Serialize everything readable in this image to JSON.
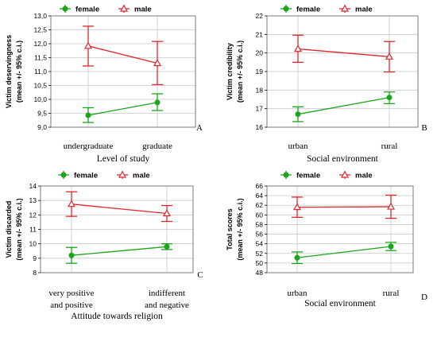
{
  "colors": {
    "female": "#1aa51a",
    "male": "#e0262c",
    "grid": "#c8c8c8",
    "frame": "#7a7a7a"
  },
  "chart_data": [
    {
      "type": "line",
      "panel_label": "A",
      "ylabel": [
        "Victim deservingness",
        "(mean +/- 95% c.i.)"
      ],
      "xlabel": "Level of study",
      "categories": [
        [
          "undergraduate"
        ],
        [
          "graduate"
        ]
      ],
      "ylim": [
        9.0,
        13.0
      ],
      "yticks": [
        9.0,
        9.5,
        10.0,
        10.5,
        11.0,
        11.5,
        12.0,
        12.5,
        13.0
      ],
      "tick_decimals": 1,
      "grid": true,
      "legend_position": "top",
      "series": [
        {
          "name": "female",
          "marker": "circle",
          "values": [
            9.43,
            9.89
          ],
          "lower": [
            9.17,
            9.6
          ],
          "upper": [
            9.7,
            10.2
          ]
        },
        {
          "name": "male",
          "marker": "triangle",
          "values": [
            11.92,
            11.3
          ],
          "lower": [
            11.2,
            10.53
          ],
          "upper": [
            12.63,
            12.08
          ]
        }
      ]
    },
    {
      "type": "line",
      "panel_label": "B",
      "ylabel": [
        "Victim credibility",
        "(mean +/- 95% c.i.)"
      ],
      "xlabel": "Social environment",
      "categories": [
        [
          "urban"
        ],
        [
          "rural"
        ]
      ],
      "ylim": [
        16,
        22
      ],
      "yticks": [
        16,
        17,
        18,
        19,
        20,
        21,
        22
      ],
      "tick_decimals": 0,
      "grid": true,
      "legend_position": "top",
      "series": [
        {
          "name": "female",
          "marker": "circle",
          "values": [
            16.7,
            17.6
          ],
          "lower": [
            16.3,
            17.27
          ],
          "upper": [
            17.1,
            17.9
          ]
        },
        {
          "name": "male",
          "marker": "triangle",
          "values": [
            20.22,
            19.8
          ],
          "lower": [
            19.5,
            18.98
          ],
          "upper": [
            20.96,
            20.62
          ]
        }
      ]
    },
    {
      "type": "line",
      "panel_label": "C",
      "ylabel": [
        "Victim discarded",
        "(mean +/- 95% c.i.)"
      ],
      "xlabel": "Attitude towards religion",
      "categories": [
        [
          "very positive",
          "and positive"
        ],
        [
          "indifferent",
          "and negative"
        ]
      ],
      "ylim": [
        8,
        14
      ],
      "yticks": [
        8,
        9,
        10,
        11,
        12,
        13,
        14
      ],
      "tick_decimals": 0,
      "grid": true,
      "legend_position": "top",
      "series": [
        {
          "name": "female",
          "marker": "circle",
          "values": [
            9.2,
            9.8
          ],
          "lower": [
            8.65,
            9.6
          ],
          "upper": [
            9.75,
            10.0
          ]
        },
        {
          "name": "male",
          "marker": "triangle",
          "values": [
            12.75,
            12.1
          ],
          "lower": [
            11.9,
            11.55
          ],
          "upper": [
            13.6,
            12.65
          ]
        }
      ]
    },
    {
      "type": "line",
      "panel_label": "D",
      "ylabel": [
        "Total scores",
        "(mean +/- 95% c.i.)"
      ],
      "xlabel": "Social environment",
      "categories": [
        [
          "urban"
        ],
        [
          "rural"
        ]
      ],
      "ylim": [
        48,
        66
      ],
      "yticks": [
        48,
        50,
        52,
        54,
        56,
        58,
        60,
        62,
        64,
        66
      ],
      "tick_decimals": 0,
      "grid": true,
      "legend_position": "top",
      "series": [
        {
          "name": "female",
          "marker": "circle",
          "values": [
            51.1,
            53.45
          ],
          "lower": [
            49.9,
            52.6
          ],
          "upper": [
            52.3,
            54.3
          ]
        },
        {
          "name": "male",
          "marker": "triangle",
          "values": [
            61.6,
            61.7
          ],
          "lower": [
            59.5,
            59.3
          ],
          "upper": [
            63.7,
            64.1
          ]
        }
      ]
    }
  ]
}
